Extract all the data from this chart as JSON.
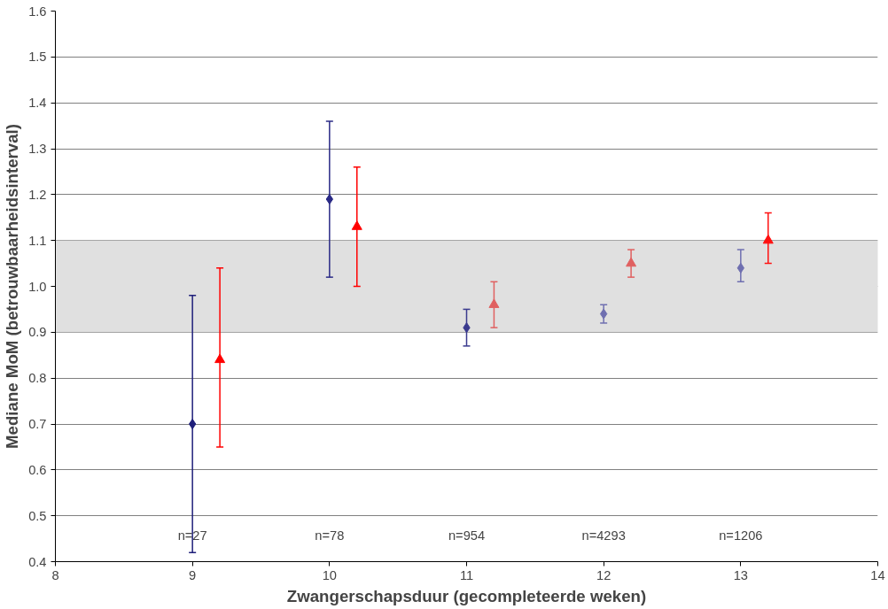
{
  "chart_data": {
    "type": "scatter",
    "xlabel": "Zwangerschapsduur (gecompleteerde weken)",
    "ylabel": "Mediane MoM (betrouwbaarheidsinterval)",
    "xlim": [
      8,
      14
    ],
    "xticks": [
      8,
      9,
      10,
      11,
      12,
      13,
      14
    ],
    "ylim": [
      0.4,
      1.6
    ],
    "yticks": [
      0.4,
      0.5,
      0.6,
      0.7,
      0.8,
      0.9,
      {
        "value": 1,
        "label": "1.0"
      },
      1.1,
      1.2,
      1.3,
      1.4,
      1.5,
      1.6
    ],
    "grid": "y",
    "bands": [
      {
        "axis": "y",
        "from": 0.9,
        "to": 1.1,
        "color": "#e0e0e0"
      }
    ],
    "series": [
      {
        "colors": [
          "#1f1f7a",
          "#2a2a86",
          "#3a3a8e",
          "#6f6fb0",
          "#6f6fb0"
        ],
        "marker": "diamond",
        "x": [
          9,
          10,
          11,
          12,
          13
        ],
        "values": [
          0.7,
          1.19,
          0.91,
          0.94,
          1.04
        ],
        "errors": [
          [
            0.42,
            0.98
          ],
          [
            1.02,
            1.36
          ],
          [
            0.87,
            0.95
          ],
          [
            0.92,
            0.96
          ],
          [
            1.01,
            1.08
          ]
        ]
      },
      {
        "colors": [
          "#ff0000",
          "#ff0000",
          "#e06060",
          "#e06060",
          "#ff1010"
        ],
        "marker": "triangle",
        "x": [
          9.2,
          10.2,
          11.2,
          12.2,
          13.2
        ],
        "values": [
          0.84,
          1.13,
          0.96,
          1.05,
          1.1
        ],
        "errors": [
          [
            0.65,
            1.04
          ],
          [
            1.0,
            1.26
          ],
          [
            0.91,
            1.01
          ],
          [
            1.02,
            1.08
          ],
          [
            1.05,
            1.16
          ]
        ]
      }
    ],
    "annotations": [
      "n=27",
      "n=78",
      "n=954",
      "n=4293",
      "n=1206"
    ]
  }
}
